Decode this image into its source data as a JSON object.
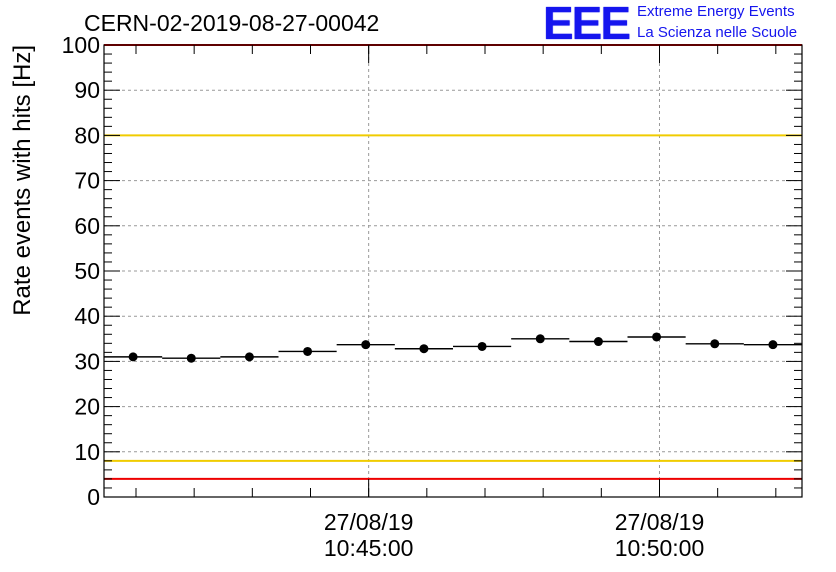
{
  "header": {
    "title": "CERN-02-2019-08-27-00042",
    "logo_text": "EEE",
    "org_line1": "Extreme Energy Events",
    "org_line2": "La Scienza nelle Scuole"
  },
  "colors": {
    "brand": "#1515ee",
    "upper_limit": "#ee0000",
    "lower_limit": "#ee0000",
    "upper_warning": "#f0cc00",
    "lower_warning": "#f0cc00",
    "markers": "#000000"
  },
  "chart_data": {
    "type": "scatter",
    "title": "CERN-02-2019-08-27-00042",
    "xlabel": "",
    "ylabel": "Rate events with hits [Hz]",
    "ylim": [
      0,
      100
    ],
    "y_ticks": [
      0,
      10,
      20,
      30,
      40,
      50,
      60,
      70,
      80,
      90,
      100
    ],
    "x_ticks": [
      {
        "date": "27/08/19",
        "time": "10:45:00"
      },
      {
        "date": "27/08/19",
        "time": "10:50:00"
      }
    ],
    "xlim": [
      "10:40:27",
      "10:52:27"
    ],
    "bin_width_s": 60,
    "grid": true,
    "reference_lines": [
      {
        "y": 100,
        "color": "red"
      },
      {
        "y": 80,
        "color": "yellow"
      },
      {
        "y": 8,
        "color": "yellow"
      },
      {
        "y": 4,
        "color": "red"
      }
    ],
    "series": [
      {
        "x": [
          "10:40:57",
          "10:41:57",
          "10:42:57",
          "10:43:57",
          "10:44:57",
          "10:45:57",
          "10:46:57",
          "10:47:57",
          "10:48:57",
          "10:49:57",
          "10:50:57",
          "10:51:57"
        ],
        "values": [
          31.0,
          30.7,
          31.0,
          32.2,
          33.7,
          32.8,
          33.3,
          35.0,
          34.4,
          35.4,
          33.9,
          33.7
        ]
      }
    ]
  }
}
